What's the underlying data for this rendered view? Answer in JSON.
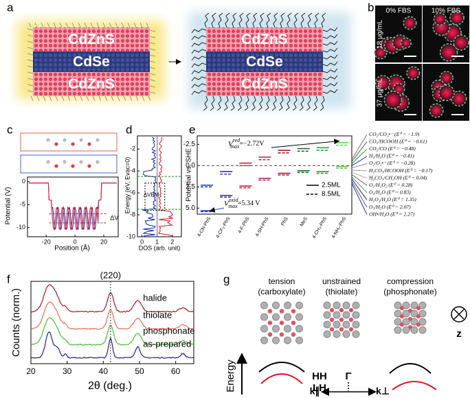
{
  "panel_labels": [
    "a",
    "b",
    "c",
    "d",
    "e",
    "f",
    "g"
  ],
  "a": {
    "layers": [
      "CdZnS",
      "CdSe",
      "CdZnS"
    ]
  },
  "b": {
    "columns": [
      "0% FBS",
      "10% FBS"
    ],
    "rows": [
      "18 μg/mL",
      "37 μg/mL"
    ]
  },
  "c": {
    "ylabel": "Potential (V)",
    "xlabel": "Position (Å)",
    "annotation": "ΔV",
    "ylim": [
      -12,
      1
    ],
    "yticks": [
      0,
      -5,
      -10
    ],
    "xlim": [
      -33,
      30
    ],
    "xticks": [
      -20,
      0,
      20
    ]
  },
  "d": {
    "ylabel": "Energy (eV, Evac=0)",
    "xlabel": "DOS (arb. unit)",
    "annotation": "ΔVBM",
    "ylim": [
      -0.8,
      -10
    ],
    "yticks": [
      -2,
      -4,
      -6,
      -8,
      -10
    ],
    "xlim": [
      -0.3,
      2.6
    ],
    "xticks": [
      0,
      1,
      2
    ]
  },
  "e": {
    "ylabel": "Potential vs. SHE",
    "categories": [
      "4-CN-PhS",
      "4-CF₃-PhS",
      "4-F-PhS",
      "4-SH-PhS",
      "PhS",
      "MeS",
      "4-CH₃-PhS",
      "4-NH₂-PhS"
    ],
    "colors": [
      "#1f3fbf",
      "#3a2f9a",
      "#d0203a",
      "#b0305a",
      "#a01830",
      "#1f6a3a",
      "#2f9a3f",
      "#5fcf4f"
    ],
    "ylim": [
      -3.5,
      5.7
    ],
    "yticks": [
      {
        "value": -2.5,
        "label": "-2.5"
      },
      {
        "value": 0,
        "label": "0.0"
      },
      {
        "value": 2.5,
        "label": "2.5"
      },
      {
        "value": 5,
        "label": "5.0"
      }
    ],
    "series": [
      {
        "name": "2.5ML",
        "dashed": false,
        "cb": [
          2.3,
          0.7,
          -0.3,
          -1.0,
          -1.8,
          -2.0,
          -2.1,
          -2.72
        ],
        "vb": [
          5.3,
          3.5,
          2.4,
          1.5,
          0.9,
          0.6,
          0.7,
          0.1
        ]
      },
      {
        "name": "8.5ML",
        "dashed": true,
        "cb": [
          2.5,
          1.0,
          0.0,
          -0.7,
          -1.5,
          -1.7,
          -1.8,
          -2.4
        ],
        "vb": [
          5.4,
          3.7,
          2.6,
          1.7,
          1.1,
          0.8,
          0.9,
          0.3
        ]
      }
    ],
    "annotation_red": {
      "symbol": "V",
      "sup": "red",
      "sub": "max",
      "text": "=−2.72V"
    },
    "annotation_oxid": {
      "symbol": "V",
      "sup": "oxid",
      "sub": "max",
      "text": "=5.34 V"
    },
    "redox": [
      "CO₂/CO₂•⁻ (E⁰ = −1.9)",
      "CO₂/HCOOH (E⁰ = −0.61)",
      "CO₂/CO (E⁰ = −0.48)",
      "H₂/H₂O (E⁰ = −0.41)",
      "O₂/O₂•⁻ (E⁰ = −0.28)",
      "H₂CO₃/HCOOH (E⁰ = −0.17)",
      "H₂CO₃/CH₃OH (E⁰ = 0.04)",
      "O₂/H₂O₂ (E⁰ = 0.28)",
      "O₂/H₂O (E⁰ = 0.83)",
      "H₂O₂/H₂O (E⁰ = 1.35)",
      "O₃/H₂O (E⁰ = 2.07)",
      "OH•/H₂O (E⁰ = 2.27)"
    ]
  },
  "f": {
    "ylabel": "Counts (norm.)",
    "xlabel": "2θ (deg.)",
    "xlim": [
      20,
      65
    ],
    "xticks": [
      20,
      30,
      40,
      50,
      60
    ],
    "peak_label": "(220)",
    "curves": [
      "halide",
      "thiolate",
      "phosphonate",
      "as-prepared"
    ]
  },
  "g": {
    "columns": [
      {
        "title": "tension",
        "subtitle": "(carboxylate)"
      },
      {
        "title": "unstrained",
        "subtitle": "(thiolate)"
      },
      {
        "title": "compression",
        "subtitle": "(phosphonate)"
      }
    ],
    "axis": "z",
    "energy": "Energy",
    "bands": [
      "HH",
      "LH"
    ],
    "point": "Γ",
    "k_parallel": "k∥",
    "k_perp": "k⊥"
  }
}
